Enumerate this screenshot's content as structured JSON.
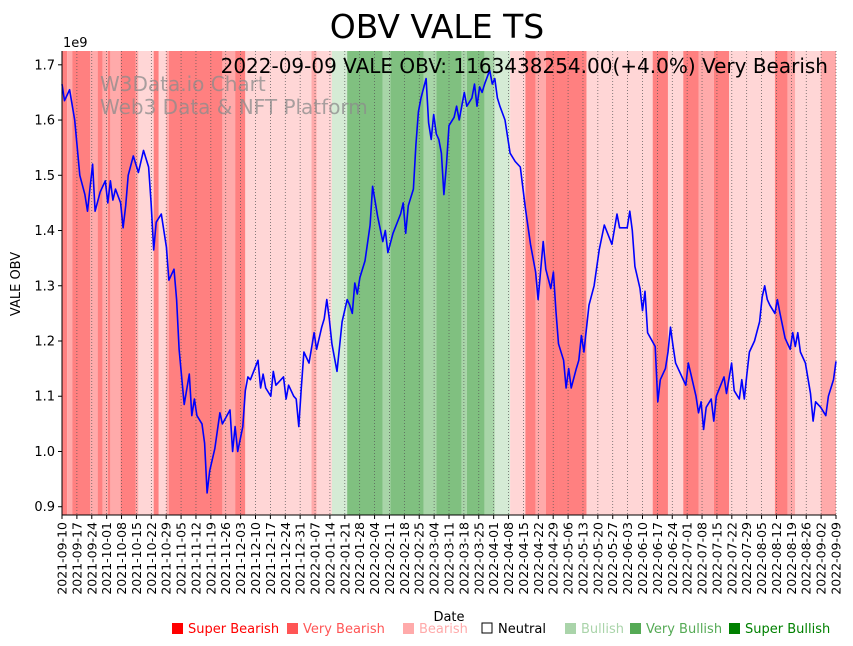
{
  "chart_data": {
    "type": "line",
    "title": "OBV VALE TS",
    "xlabel": "Date",
    "ylabel": "VALE OBV",
    "y_scale_label": "1e9",
    "annotation": "2022-09-09 VALE OBV: 1163438254.00(+4.0%) Very Bearish",
    "watermark": [
      "W3Data.io Chart",
      "Web3 Data & NFT Platform"
    ],
    "ylim": [
      0.885,
      1.725
    ],
    "yticks": [
      0.9,
      1.0,
      1.1,
      1.2,
      1.3,
      1.4,
      1.5,
      1.6,
      1.7
    ],
    "ytick_labels": [
      "0.9",
      "1.0",
      "1.1",
      "1.2",
      "1.3",
      "1.4",
      "1.5",
      "1.6",
      "1.7"
    ],
    "x_start": "2021-09-10",
    "x_end": "2022-09-09",
    "xtick_labels": [
      "2021-09-10",
      "2021-09-17",
      "2021-09-24",
      "2021-10-01",
      "2021-10-08",
      "2021-10-15",
      "2021-10-22",
      "2021-10-29",
      "2021-11-05",
      "2021-11-12",
      "2021-11-19",
      "2021-11-26",
      "2021-12-03",
      "2021-12-10",
      "2021-12-17",
      "2021-12-24",
      "2021-12-31",
      "2022-01-07",
      "2022-01-14",
      "2022-01-21",
      "2022-01-28",
      "2022-02-04",
      "2022-02-11",
      "2022-02-18",
      "2022-02-25",
      "2022-03-04",
      "2022-03-11",
      "2022-03-18",
      "2022-03-25",
      "2022-04-01",
      "2022-04-08",
      "2022-04-15",
      "2022-04-22",
      "2022-04-29",
      "2022-05-06",
      "2022-05-13",
      "2022-05-20",
      "2022-05-27",
      "2022-06-03",
      "2022-06-10",
      "2022-06-17",
      "2022-06-24",
      "2022-07-01",
      "2022-07-08",
      "2022-07-15",
      "2022-07-22",
      "2022-07-29",
      "2022-08-05",
      "2022-08-12",
      "2022-08-19",
      "2022-08-26",
      "2022-09-02",
      "2022-09-09"
    ],
    "series": [
      {
        "name": "VALE OBV",
        "color": "#0000ff",
        "points": [
          [
            0,
            1.665
          ],
          [
            1,
            1.635
          ],
          [
            3,
            1.655
          ],
          [
            5,
            1.6
          ],
          [
            7,
            1.5
          ],
          [
            9,
            1.465
          ],
          [
            10,
            1.435
          ],
          [
            12,
            1.52
          ],
          [
            13,
            1.435
          ],
          [
            15,
            1.47
          ],
          [
            17,
            1.49
          ],
          [
            18,
            1.45
          ],
          [
            19,
            1.49
          ],
          [
            20,
            1.455
          ],
          [
            21,
            1.475
          ],
          [
            23,
            1.45
          ],
          [
            24,
            1.405
          ],
          [
            25,
            1.445
          ],
          [
            26,
            1.5
          ],
          [
            28,
            1.535
          ],
          [
            30,
            1.505
          ],
          [
            32,
            1.545
          ],
          [
            34,
            1.515
          ],
          [
            35,
            1.45
          ],
          [
            36,
            1.365
          ],
          [
            37,
            1.415
          ],
          [
            39,
            1.43
          ],
          [
            41,
            1.37
          ],
          [
            42,
            1.31
          ],
          [
            44,
            1.33
          ],
          [
            45,
            1.275
          ],
          [
            46,
            1.185
          ],
          [
            48,
            1.085
          ],
          [
            50,
            1.14
          ],
          [
            51,
            1.065
          ],
          [
            52,
            1.095
          ],
          [
            53,
            1.065
          ],
          [
            55,
            1.05
          ],
          [
            56,
            1.015
          ],
          [
            57,
            0.925
          ],
          [
            58,
            0.965
          ],
          [
            60,
            1.005
          ],
          [
            62,
            1.07
          ],
          [
            63,
            1.05
          ],
          [
            66,
            1.075
          ],
          [
            67,
            1.0
          ],
          [
            68,
            1.045
          ],
          [
            69,
            1.0
          ],
          [
            71,
            1.045
          ],
          [
            72,
            1.11
          ],
          [
            73,
            1.135
          ],
          [
            74,
            1.13
          ],
          [
            77,
            1.165
          ],
          [
            78,
            1.115
          ],
          [
            79,
            1.14
          ],
          [
            80,
            1.115
          ],
          [
            82,
            1.1
          ],
          [
            83,
            1.145
          ],
          [
            84,
            1.12
          ],
          [
            87,
            1.135
          ],
          [
            88,
            1.095
          ],
          [
            89,
            1.12
          ],
          [
            91,
            1.1
          ],
          [
            92,
            1.095
          ],
          [
            93,
            1.045
          ],
          [
            94,
            1.115
          ],
          [
            95,
            1.18
          ],
          [
            97,
            1.16
          ],
          [
            99,
            1.215
          ],
          [
            100,
            1.185
          ],
          [
            102,
            1.225
          ],
          [
            103,
            1.24
          ],
          [
            104,
            1.275
          ],
          [
            105,
            1.24
          ],
          [
            106,
            1.195
          ],
          [
            108,
            1.145
          ],
          [
            110,
            1.235
          ],
          [
            112,
            1.275
          ],
          [
            113,
            1.265
          ],
          [
            114,
            1.25
          ],
          [
            115,
            1.305
          ],
          [
            116,
            1.285
          ],
          [
            117,
            1.315
          ],
          [
            119,
            1.345
          ],
          [
            121,
            1.41
          ],
          [
            122,
            1.48
          ],
          [
            124,
            1.425
          ],
          [
            126,
            1.38
          ],
          [
            127,
            1.4
          ],
          [
            128,
            1.36
          ],
          [
            130,
            1.395
          ],
          [
            133,
            1.43
          ],
          [
            134,
            1.45
          ],
          [
            135,
            1.395
          ],
          [
            136,
            1.445
          ],
          [
            138,
            1.475
          ],
          [
            139,
            1.555
          ],
          [
            140,
            1.615
          ],
          [
            141,
            1.64
          ],
          [
            143,
            1.675
          ],
          [
            144,
            1.595
          ],
          [
            145,
            1.565
          ],
          [
            146,
            1.61
          ],
          [
            147,
            1.575
          ],
          [
            148,
            1.565
          ],
          [
            149,
            1.54
          ],
          [
            150,
            1.465
          ],
          [
            151,
            1.52
          ],
          [
            152,
            1.59
          ],
          [
            154,
            1.605
          ],
          [
            155,
            1.625
          ],
          [
            156,
            1.6
          ],
          [
            158,
            1.65
          ],
          [
            159,
            1.625
          ],
          [
            161,
            1.64
          ],
          [
            162,
            1.665
          ],
          [
            163,
            1.625
          ],
          [
            164,
            1.66
          ],
          [
            165,
            1.65
          ],
          [
            166,
            1.665
          ],
          [
            168,
            1.69
          ],
          [
            169,
            1.665
          ],
          [
            170,
            1.675
          ],
          [
            171,
            1.64
          ],
          [
            172,
            1.625
          ],
          [
            174,
            1.6
          ],
          [
            176,
            1.54
          ],
          [
            178,
            1.525
          ],
          [
            180,
            1.515
          ],
          [
            182,
            1.44
          ],
          [
            184,
            1.375
          ],
          [
            186,
            1.325
          ],
          [
            187,
            1.275
          ],
          [
            189,
            1.38
          ],
          [
            190,
            1.33
          ],
          [
            192,
            1.295
          ],
          [
            193,
            1.325
          ],
          [
            194,
            1.255
          ],
          [
            195,
            1.195
          ],
          [
            197,
            1.165
          ],
          [
            198,
            1.115
          ],
          [
            199,
            1.15
          ],
          [
            200,
            1.115
          ],
          [
            202,
            1.15
          ],
          [
            203,
            1.165
          ],
          [
            204,
            1.21
          ],
          [
            205,
            1.18
          ],
          [
            207,
            1.265
          ],
          [
            209,
            1.3
          ],
          [
            211,
            1.365
          ],
          [
            213,
            1.41
          ],
          [
            216,
            1.375
          ],
          [
            218,
            1.43
          ],
          [
            219,
            1.405
          ],
          [
            222,
            1.405
          ],
          [
            223,
            1.435
          ],
          [
            224,
            1.4
          ],
          [
            225,
            1.335
          ],
          [
            227,
            1.295
          ],
          [
            228,
            1.255
          ],
          [
            229,
            1.29
          ],
          [
            230,
            1.215
          ],
          [
            233,
            1.19
          ],
          [
            234,
            1.09
          ],
          [
            235,
            1.13
          ],
          [
            237,
            1.15
          ],
          [
            238,
            1.18
          ],
          [
            239,
            1.225
          ],
          [
            240,
            1.19
          ],
          [
            241,
            1.16
          ],
          [
            245,
            1.12
          ],
          [
            246,
            1.16
          ],
          [
            247,
            1.14
          ],
          [
            249,
            1.1
          ],
          [
            250,
            1.07
          ],
          [
            251,
            1.09
          ],
          [
            252,
            1.04
          ],
          [
            253,
            1.08
          ],
          [
            255,
            1.095
          ],
          [
            256,
            1.055
          ],
          [
            257,
            1.1
          ],
          [
            260,
            1.135
          ],
          [
            261,
            1.105
          ],
          [
            263,
            1.16
          ],
          [
            264,
            1.11
          ],
          [
            266,
            1.095
          ],
          [
            267,
            1.13
          ],
          [
            268,
            1.095
          ],
          [
            269,
            1.14
          ],
          [
            270,
            1.18
          ],
          [
            272,
            1.2
          ],
          [
            274,
            1.235
          ],
          [
            275,
            1.28
          ],
          [
            276,
            1.3
          ],
          [
            277,
            1.275
          ],
          [
            278,
            1.265
          ],
          [
            280,
            1.25
          ],
          [
            281,
            1.275
          ],
          [
            282,
            1.25
          ],
          [
            284,
            1.205
          ],
          [
            286,
            1.185
          ],
          [
            287,
            1.215
          ],
          [
            288,
            1.19
          ],
          [
            289,
            1.215
          ],
          [
            290,
            1.18
          ],
          [
            292,
            1.16
          ],
          [
            294,
            1.105
          ],
          [
            295,
            1.055
          ],
          [
            296,
            1.09
          ],
          [
            298,
            1.08
          ],
          [
            300,
            1.065
          ],
          [
            301,
            1.1
          ],
          [
            303,
            1.13
          ],
          [
            304,
            1.163
          ]
        ]
      }
    ],
    "x_max_index": 304,
    "background_regions": [
      {
        "start": 0,
        "end": 2,
        "class": "very_bearish"
      },
      {
        "start": 2,
        "end": 4,
        "class": "bearish"
      },
      {
        "start": 4,
        "end": 11,
        "class": "very_bearish"
      },
      {
        "start": 11,
        "end": 14,
        "class": "bearish"
      },
      {
        "start": 14,
        "end": 16,
        "class": "very_bearish"
      },
      {
        "start": 16,
        "end": 18,
        "class": "bearish"
      },
      {
        "start": 18,
        "end": 19,
        "class": "very_bearish"
      },
      {
        "start": 19,
        "end": 23,
        "class": "bearish"
      },
      {
        "start": 23,
        "end": 29,
        "class": "very_bearish"
      },
      {
        "start": 29,
        "end": 30,
        "class": "bearish"
      },
      {
        "start": 30,
        "end": 36,
        "class": "neutral_pink"
      },
      {
        "start": 36,
        "end": 38,
        "class": "very_bearish"
      },
      {
        "start": 38,
        "end": 41,
        "class": "neutral_pink"
      },
      {
        "start": 41,
        "end": 42,
        "class": "bearish"
      },
      {
        "start": 42,
        "end": 63,
        "class": "very_bearish"
      },
      {
        "start": 63,
        "end": 68,
        "class": "bearish"
      },
      {
        "start": 68,
        "end": 72,
        "class": "very_bearish"
      },
      {
        "start": 72,
        "end": 98,
        "class": "neutral_pink"
      },
      {
        "start": 98,
        "end": 100,
        "class": "bearish"
      },
      {
        "start": 100,
        "end": 106,
        "class": "neutral_pink"
      },
      {
        "start": 106,
        "end": 112,
        "class": "bullish_light"
      },
      {
        "start": 112,
        "end": 126,
        "class": "very_bullish"
      },
      {
        "start": 126,
        "end": 129,
        "class": "bullish"
      },
      {
        "start": 129,
        "end": 142,
        "class": "very_bullish"
      },
      {
        "start": 142,
        "end": 147,
        "class": "bullish"
      },
      {
        "start": 147,
        "end": 157,
        "class": "very_bullish"
      },
      {
        "start": 157,
        "end": 159,
        "class": "bullish"
      },
      {
        "start": 159,
        "end": 166,
        "class": "very_bullish"
      },
      {
        "start": 166,
        "end": 170,
        "class": "bullish"
      },
      {
        "start": 170,
        "end": 176,
        "class": "bullish_light"
      },
      {
        "start": 176,
        "end": 182,
        "class": "neutral_pink"
      },
      {
        "start": 182,
        "end": 186,
        "class": "very_bearish"
      },
      {
        "start": 186,
        "end": 190,
        "class": "bearish"
      },
      {
        "start": 190,
        "end": 195,
        "class": "very_bearish"
      },
      {
        "start": 195,
        "end": 206,
        "class": "very_bearish"
      },
      {
        "start": 206,
        "end": 232,
        "class": "neutral_pink"
      },
      {
        "start": 232,
        "end": 238,
        "class": "very_bearish"
      },
      {
        "start": 238,
        "end": 244,
        "class": "neutral_pink"
      },
      {
        "start": 244,
        "end": 250,
        "class": "very_bearish"
      },
      {
        "start": 250,
        "end": 256,
        "class": "bearish"
      },
      {
        "start": 256,
        "end": 262,
        "class": "very_bearish"
      },
      {
        "start": 262,
        "end": 270,
        "class": "neutral_pink"
      },
      {
        "start": 270,
        "end": 280,
        "class": "neutral_pink"
      },
      {
        "start": 280,
        "end": 285,
        "class": "very_bearish"
      },
      {
        "start": 285,
        "end": 288,
        "class": "bearish"
      },
      {
        "start": 288,
        "end": 298,
        "class": "neutral_pink"
      },
      {
        "start": 298,
        "end": 304,
        "class": "bearish"
      }
    ],
    "region_colors": {
      "very_bearish": "#ff8080",
      "bearish": "#ffaaaa",
      "neutral_pink": "#ffd6d6",
      "bullish_light": "#d5ebd5",
      "bullish": "#a8d5a8",
      "very_bullish": "#80c080"
    },
    "legend": [
      {
        "label": "Super Bearish",
        "color": "#ff0000"
      },
      {
        "label": "Very Bearish",
        "color": "#ff5555"
      },
      {
        "label": "Bearish",
        "color": "#ffaaaa"
      },
      {
        "label": "Neutral",
        "color": "#000000",
        "hollow": true
      },
      {
        "label": "Bullish",
        "color": "#aad4aa"
      },
      {
        "label": "Very Bullish",
        "color": "#55aa55"
      },
      {
        "label": "Super Bullish",
        "color": "#008000"
      }
    ]
  }
}
